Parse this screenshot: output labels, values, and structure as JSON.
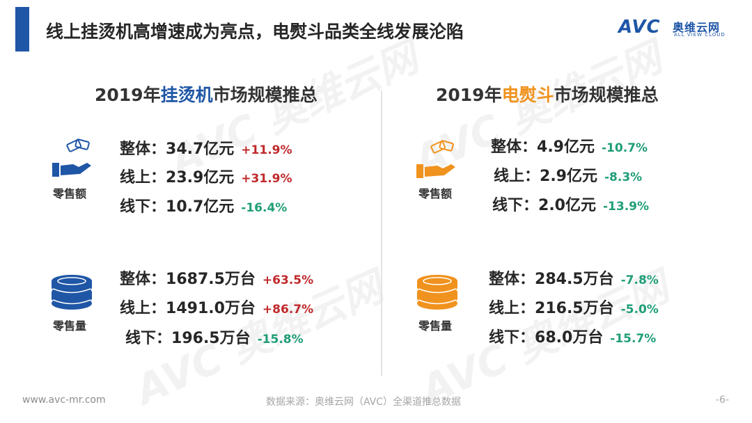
{
  "header": {
    "title": "线上挂烫机高增速成为亮点，电熨斗品类全线发展沦陷",
    "logo_mark": "AVC",
    "logo_cn": "奥维云网",
    "logo_en": "ALL VIEW CLOUD"
  },
  "left": {
    "title_prefix": "2019年",
    "title_highlight": "挂烫机",
    "title_suffix": "市场规模推总",
    "highlight_color": "#1f56a6",
    "revenue": {
      "icon": "money-hand-icon",
      "label": "零售额",
      "rows": [
        {
          "label": "整体：",
          "value": "34.7亿元",
          "change": "+11.9%",
          "trend": "up"
        },
        {
          "label": "线上：",
          "value": "23.9亿元",
          "change": "+31.9%",
          "trend": "up"
        },
        {
          "label": "线下：",
          "value": "10.7亿元",
          "change": "-16.4%",
          "trend": "down"
        }
      ]
    },
    "volume": {
      "icon": "coin-stack-icon",
      "label": "零售量",
      "rows": [
        {
          "label": "整体：",
          "value": "1687.5万台",
          "change": "+63.5%",
          "trend": "up"
        },
        {
          "label": "线上：",
          "value": "1491.0万台",
          "change": "+86.7%",
          "trend": "up"
        },
        {
          "label": "线下：",
          "value": "196.5万台",
          "change": "-15.8%",
          "trend": "down"
        }
      ]
    }
  },
  "right": {
    "title_prefix": "2019年",
    "title_highlight": "电熨斗",
    "title_suffix": "市场规模推总",
    "highlight_color": "#f0921e",
    "revenue": {
      "icon": "money-hand-icon",
      "label": "零售额",
      "rows": [
        {
          "label": "整体：",
          "value": "4.9亿元",
          "change": "-10.7%",
          "trend": "down"
        },
        {
          "label": "线上：",
          "value": "2.9亿元",
          "change": "-8.3%",
          "trend": "down"
        },
        {
          "label": "线下：",
          "value": "2.0亿元",
          "change": "-13.9%",
          "trend": "down"
        }
      ]
    },
    "volume": {
      "icon": "coin-stack-icon",
      "label": "零售量",
      "rows": [
        {
          "label": "整体：",
          "value": "284.5万台",
          "change": "-7.8%",
          "trend": "down"
        },
        {
          "label": "线上：",
          "value": "216.5万台",
          "change": "-5.0%",
          "trend": "down"
        },
        {
          "label": "线下：",
          "value": "68.0万台",
          "change": "-15.7%",
          "trend": "down"
        }
      ]
    }
  },
  "colors": {
    "brand_blue": "#1f56a6",
    "orange": "#f0921e",
    "increase": "#c0292b",
    "decrease": "#1f9e78"
  },
  "footer": {
    "url": "www.avc-mr.com",
    "source": "数据来源：奥维云网（AVC）全渠道推总数据",
    "page": "-6-"
  }
}
